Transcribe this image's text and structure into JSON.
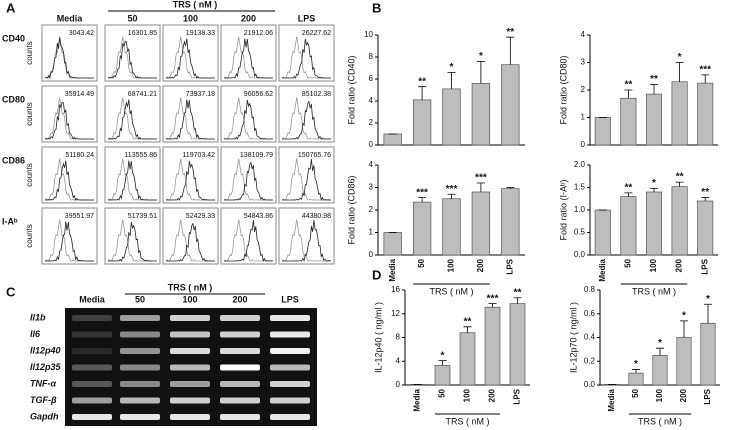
{
  "panel_a": {
    "letter": "A",
    "header": "TRS ( nM )",
    "columns": [
      "Media",
      "50",
      "100",
      "200",
      "LPS"
    ],
    "axis_label": "counts",
    "rows": [
      {
        "label": "CD40",
        "values": [
          3043.42,
          16301.85,
          19138.33,
          21912.06,
          26227.62
        ]
      },
      {
        "label": "CD80",
        "values": [
          35914.49,
          68741.21,
          73937.18,
          96056.62,
          85102.38
        ]
      },
      {
        "label": "CD86",
        "values": [
          51180.24,
          113555.86,
          119703.42,
          138109.79,
          150765.76
        ]
      },
      {
        "label": "I-Aᵇ",
        "values": [
          39551.97,
          51739.51,
          52429.33,
          54843.86,
          44380.98
        ]
      }
    ]
  },
  "panel_b": {
    "letter": "B"
  },
  "panel_c": {
    "letter": "C",
    "header": "TRS ( nM )",
    "columns": [
      "Media",
      "50",
      "100",
      "200",
      "LPS"
    ],
    "genes": [
      "Il1b",
      "Il6",
      "Il12p40",
      "Il12p35",
      "TNF-α",
      "TGF-β",
      "Gapdh"
    ]
  },
  "panel_d": {
    "letter": "D"
  },
  "chart_data": [
    {
      "type": "bar",
      "ylabel": "Fold ratio (CD40)",
      "values": [
        1,
        4.1,
        5.1,
        5.6,
        7.3
      ],
      "errors": [
        0,
        1.2,
        1.5,
        2,
        2.5
      ],
      "annotations": [
        null,
        "**",
        "*",
        "*",
        "**"
      ],
      "ylim": [
        0,
        10
      ],
      "yticks": [
        0,
        2,
        4,
        6,
        8,
        10
      ],
      "color": "#bdbdbd"
    },
    {
      "type": "bar",
      "ylabel": "Fold ratio (CD80)",
      "values": [
        1,
        1.7,
        1.85,
        2.3,
        2.25
      ],
      "errors": [
        0,
        0.3,
        0.35,
        0.7,
        0.3
      ],
      "annotations": [
        null,
        "**",
        "**",
        "*",
        "***"
      ],
      "ylim": [
        0,
        4
      ],
      "yticks": [
        0,
        1,
        2,
        3,
        4
      ],
      "color": "#bdbdbd"
    },
    {
      "type": "bar",
      "ylabel": "Fold ratio (CD86)",
      "categories": [
        "Media",
        "50",
        "100",
        "200",
        "LPS"
      ],
      "xlabel": "TRS ( nM )",
      "values": [
        1,
        2.35,
        2.5,
        2.8,
        2.95
      ],
      "errors": [
        0,
        0.2,
        0.2,
        0.4,
        0.05
      ],
      "annotations": [
        null,
        "***",
        "***",
        "***",
        null
      ],
      "ylim": [
        0,
        4
      ],
      "yticks": [
        0,
        1,
        2,
        3,
        4
      ],
      "color": "#bdbdbd"
    },
    {
      "type": "bar",
      "ylabel": "Fold ratio (I-Aᵇ)",
      "categories": [
        "Media",
        "50",
        "100",
        "200",
        "LPS"
      ],
      "xlabel": "TRS ( nM )",
      "values": [
        1,
        1.3,
        1.4,
        1.52,
        1.2
      ],
      "errors": [
        0,
        0.08,
        0.08,
        0.1,
        0.08
      ],
      "annotations": [
        null,
        "**",
        "*",
        "**",
        "**"
      ],
      "ylim": [
        0,
        2
      ],
      "yticks": [
        {
          "value": 0,
          "label": "0.0"
        },
        {
          "value": 0.5,
          "label": "0.5"
        },
        {
          "value": 1,
          "label": "1.0"
        },
        {
          "value": 1.5,
          "label": "1.5"
        },
        {
          "value": 2,
          "label": "2.0"
        }
      ],
      "color": "#bdbdbd"
    },
    {
      "type": "bar",
      "ylabel": "IL-12p40 ( ng/ml )",
      "categories": [
        "Media",
        "50",
        "100",
        "200",
        "LPS"
      ],
      "xlabel": "TRS ( nM )",
      "values": [
        0.1,
        3.3,
        8.8,
        13.1,
        13.7
      ],
      "errors": [
        0,
        0.8,
        1,
        0.6,
        1
      ],
      "annotations": [
        null,
        "*",
        "**",
        "***",
        "**"
      ],
      "ylim": [
        0,
        16
      ],
      "yticks": [
        0,
        4,
        8,
        12,
        16
      ],
      "color": "#bdbdbd"
    },
    {
      "type": "bar",
      "ylabel": "IL-12p70 ( ng/ml )",
      "categories": [
        "Media",
        "50",
        "100",
        "200",
        "LPS"
      ],
      "xlabel": "TRS ( nM )",
      "values": [
        0.005,
        0.1,
        0.25,
        0.4,
        0.52
      ],
      "errors": [
        0,
        0.03,
        0.06,
        0.14,
        0.16
      ],
      "annotations": [
        null,
        "*",
        "*",
        "*",
        "*"
      ],
      "ylim": [
        0,
        0.8
      ],
      "yticks": [
        {
          "value": 0,
          "label": "0.0"
        },
        {
          "value": 0.2,
          "label": "0.2"
        },
        {
          "value": 0.4,
          "label": "0.4"
        },
        {
          "value": 0.6,
          "label": "0.6"
        },
        {
          "value": 0.8,
          "label": "0.8"
        }
      ],
      "color": "#bdbdbd"
    }
  ]
}
